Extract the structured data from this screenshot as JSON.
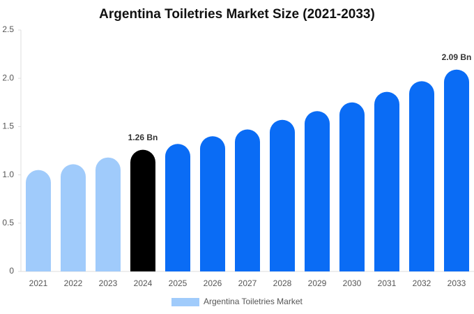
{
  "chart_data": {
    "type": "bar",
    "title": "Argentina Toiletries Market Size (2021-2033)",
    "categories": [
      "2021",
      "2022",
      "2023",
      "2024",
      "2025",
      "2026",
      "2027",
      "2028",
      "2029",
      "2030",
      "2031",
      "2032",
      "2033"
    ],
    "series": [
      {
        "name": "Argentina Toiletries Market",
        "color": "#a0cbfb",
        "values": [
          1.05,
          1.11,
          1.18,
          1.26,
          1.32,
          1.4,
          1.47,
          1.57,
          1.66,
          1.75,
          1.86,
          1.97,
          2.09
        ],
        "value_labels": [
          null,
          null,
          null,
          "1.26 Bn",
          null,
          null,
          null,
          null,
          null,
          null,
          null,
          null,
          "2.09 Bn"
        ],
        "colors": [
          "#a0cbfb",
          "#a0cbfb",
          "#a0cbfb",
          "#000000",
          "#0a6cf5",
          "#0a6cf5",
          "#0a6cf5",
          "#0a6cf5",
          "#0a6cf5",
          "#0a6cf5",
          "#0a6cf5",
          "#0a6cf5",
          "#0a6cf5"
        ]
      }
    ],
    "ylim": [
      0,
      2.5
    ],
    "yticks": [
      0,
      0.5,
      {
        "value": 1,
        "label": "1.0"
      },
      1.5,
      {
        "value": 2,
        "label": "2.0"
      },
      2.5
    ],
    "grid": false,
    "legend": "bottom"
  }
}
